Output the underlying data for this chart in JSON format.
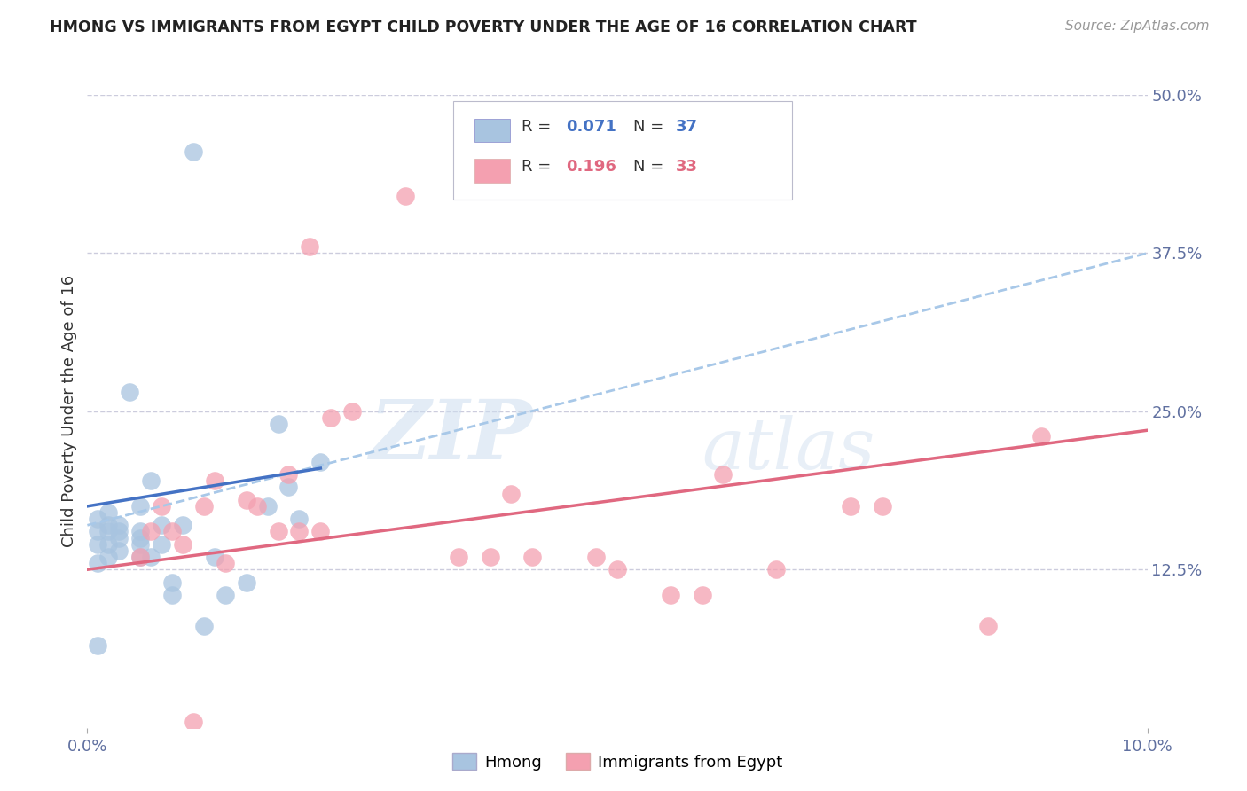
{
  "title": "HMONG VS IMMIGRANTS FROM EGYPT CHILD POVERTY UNDER THE AGE OF 16 CORRELATION CHART",
  "source": "Source: ZipAtlas.com",
  "ylabel": "Child Poverty Under the Age of 16",
  "xlim": [
    0.0,
    0.1
  ],
  "ylim": [
    0.0,
    0.5
  ],
  "yticks_right": [
    0.5,
    0.375,
    0.25,
    0.125
  ],
  "ytick_labels_right": [
    "50.0%",
    "37.5%",
    "25.0%",
    "12.5%"
  ],
  "hmong_color": "#a8c4e0",
  "egypt_color": "#f4a0b0",
  "hmong_line_color": "#4472c4",
  "egypt_line_color": "#e06880",
  "dashed_line_color": "#a8c8e8",
  "background_color": "#ffffff",
  "watermark_zip": "ZIP",
  "watermark_atlas": "atlas",
  "grid_color": "#ccccdd",
  "hmong_x": [
    0.001,
    0.001,
    0.001,
    0.001,
    0.002,
    0.002,
    0.002,
    0.002,
    0.002,
    0.003,
    0.003,
    0.003,
    0.003,
    0.004,
    0.005,
    0.005,
    0.005,
    0.005,
    0.005,
    0.006,
    0.006,
    0.007,
    0.007,
    0.008,
    0.008,
    0.009,
    0.01,
    0.011,
    0.012,
    0.013,
    0.015,
    0.017,
    0.018,
    0.019,
    0.02,
    0.022,
    0.001
  ],
  "hmong_y": [
    0.13,
    0.145,
    0.155,
    0.165,
    0.135,
    0.145,
    0.155,
    0.16,
    0.17,
    0.14,
    0.15,
    0.155,
    0.16,
    0.265,
    0.135,
    0.145,
    0.15,
    0.155,
    0.175,
    0.135,
    0.195,
    0.145,
    0.16,
    0.105,
    0.115,
    0.16,
    0.455,
    0.08,
    0.135,
    0.105,
    0.115,
    0.175,
    0.24,
    0.19,
    0.165,
    0.21,
    0.065
  ],
  "egypt_x": [
    0.005,
    0.006,
    0.007,
    0.008,
    0.009,
    0.01,
    0.011,
    0.012,
    0.013,
    0.015,
    0.016,
    0.018,
    0.019,
    0.02,
    0.021,
    0.022,
    0.023,
    0.025,
    0.03,
    0.035,
    0.038,
    0.04,
    0.042,
    0.048,
    0.05,
    0.055,
    0.058,
    0.06,
    0.065,
    0.072,
    0.075,
    0.085,
    0.09
  ],
  "egypt_y": [
    0.135,
    0.155,
    0.175,
    0.155,
    0.145,
    0.005,
    0.175,
    0.195,
    0.13,
    0.18,
    0.175,
    0.155,
    0.2,
    0.155,
    0.38,
    0.155,
    0.245,
    0.25,
    0.42,
    0.135,
    0.135,
    0.185,
    0.135,
    0.135,
    0.125,
    0.105,
    0.105,
    0.2,
    0.125,
    0.175,
    0.175,
    0.08,
    0.23
  ],
  "hmong_trend_x0": 0.0,
  "hmong_trend_x1": 0.022,
  "hmong_trend_y0": 0.175,
  "hmong_trend_y1": 0.205,
  "egypt_trend_x0": 0.0,
  "egypt_trend_x1": 0.1,
  "egypt_trend_y0": 0.125,
  "egypt_trend_y1": 0.235,
  "dashed_trend_x0": 0.0,
  "dashed_trend_x1": 0.1,
  "dashed_trend_y0": 0.16,
  "dashed_trend_y1": 0.375
}
